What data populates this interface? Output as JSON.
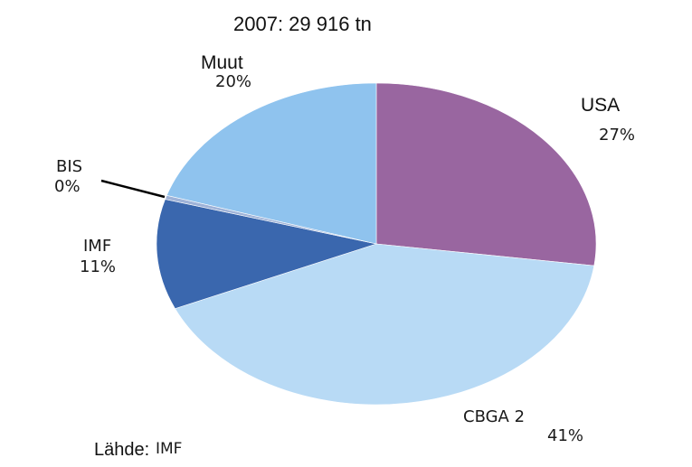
{
  "chart_data": {
    "type": "pie",
    "title": "2007: 29 916 tn",
    "slices": [
      {
        "label": "USA",
        "percent_label": "27%",
        "value": 27,
        "color": "#9966a0"
      },
      {
        "label": "CBGA 2",
        "percent_label": "41%",
        "value": 41,
        "color": "#b8daf5"
      },
      {
        "label": "IMF",
        "percent_label": "11%",
        "value": 11,
        "color": "#3a67ae"
      },
      {
        "label": "BIS",
        "percent_label": "0%",
        "value": 0.4,
        "color": "#9fb3d8"
      },
      {
        "label": "Muut",
        "percent_label": "20%",
        "value": 20,
        "color": "#8fc3ee"
      }
    ],
    "legend": "none"
  },
  "source": {
    "label": "Lähde:",
    "value": "IMF"
  }
}
